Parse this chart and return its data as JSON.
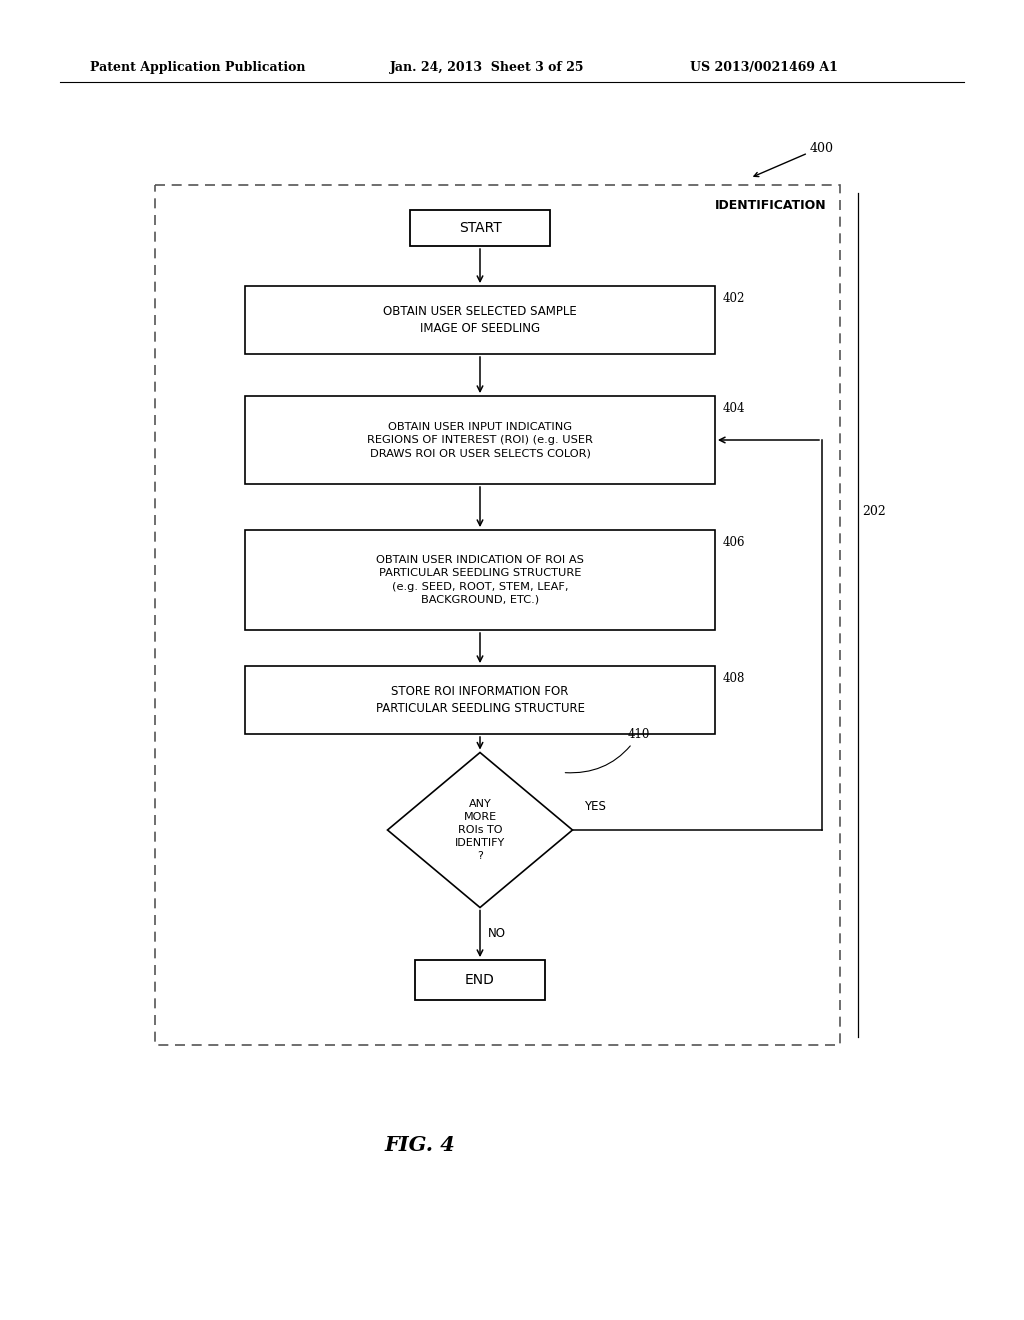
{
  "title_header_left": "Patent Application Publication",
  "title_header_mid": "Jan. 24, 2013  Sheet 3 of 25",
  "title_header_right": "US 2013/0021469 A1",
  "fig_label": "FIG. 4",
  "diagram_label": "400",
  "section_label": "202",
  "identification_label": "IDENTIFICATION",
  "node_402_text": "OBTAIN USER SELECTED SAMPLE\nIMAGE OF SEEDLING",
  "node_404_text": "OBTAIN USER INPUT INDICATING\nREGIONS OF INTEREST (ROI) (e.g. USER\nDRAWS ROI OR USER SELECTS COLOR)",
  "node_406_text": "OBTAIN USER INDICATION OF ROI AS\nPARTICULAR SEEDLING STRUCTURE\n(e.g. SEED, ROOT, STEM, LEAF,\nBACKGROUND, ETC.)",
  "node_408_text": "STORE ROI INFORMATION FOR\nPARTICULAR SEEDLING STRUCTURE",
  "node_410_text": "ANY\nMORE\nROIs TO\nIDENTIFY\n?",
  "bg_color": "#ffffff",
  "border_color": "#444444",
  "text_color": "#000000"
}
